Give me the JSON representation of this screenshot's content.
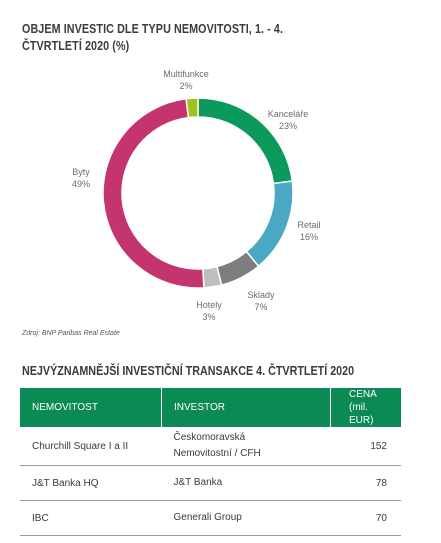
{
  "title": "OBJEM INVESTIC DLE TYPU NEMOVITOSTI, 1. - 4. ČTVRTLETÍ 2020 (%)",
  "source": "Zdroj: BNP Paribas Real Estate",
  "colors": {
    "kancelare": "#0b9a5c",
    "retail": "#4aa8c4",
    "sklady": "#7d7d7d",
    "hotely": "#bfbfbf",
    "byty": "#c4356f",
    "multifunkce": "#9ec31f",
    "header": "#0b8a55"
  },
  "chart_data": {
    "type": "pie",
    "title": "OBJEM INVESTIC DLE TYPU NEMOVITOSTI, 1. - 4. ČTVRTLETÍ 2020 (%)",
    "variant": "donut",
    "slices": [
      {
        "label": "Kanceláře",
        "value": 23,
        "display": "23%"
      },
      {
        "label": "Retail",
        "value": 16,
        "display": "16%"
      },
      {
        "label": "Sklady",
        "value": 7,
        "display": "7%"
      },
      {
        "label": "Hotely",
        "value": 3,
        "display": "3%"
      },
      {
        "label": "Byty",
        "value": 49,
        "display": "49%"
      },
      {
        "label": "Multifunkce",
        "value": 2,
        "display": "2%"
      }
    ]
  },
  "table": {
    "title": "NEJVÝZNAMNĚJŠÍ INVESTIČNÍ TRANSAKCE 4. ČTVRTLETÍ 2020",
    "headers": {
      "property": "NEMOVITOST",
      "investor": "INVESTOR",
      "price_line1": "CENA",
      "price_line2": "(mil. EUR)"
    },
    "rows": [
      {
        "property": "Churchill Square I a II",
        "investor_line1": "Českomoravská",
        "investor_line2": "Nemovitostní / CFH",
        "price": "152"
      },
      {
        "property": "J&T Banka HQ",
        "investor_line1": "J&T Banka",
        "investor_line2": "",
        "price": "78"
      },
      {
        "property": "IBC",
        "investor_line1": "Generali Group",
        "investor_line2": "",
        "price": "70"
      }
    ]
  }
}
